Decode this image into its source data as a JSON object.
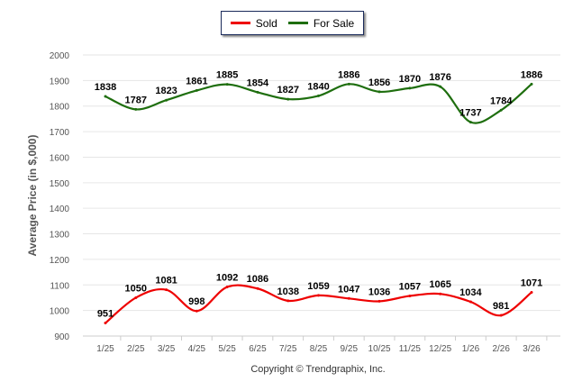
{
  "chart_data": {
    "type": "line",
    "title": "",
    "xlabel": "",
    "ylabel": "Average Price (in $,000)",
    "ylim": [
      900,
      2000
    ],
    "yticks": [
      900,
      1000,
      1100,
      1200,
      1300,
      1400,
      1500,
      1600,
      1700,
      1800,
      1900,
      2000
    ],
    "grid": true,
    "legend_position": "top-center",
    "categories": [
      "1/25",
      "2/25",
      "3/25",
      "4/25",
      "5/25",
      "6/25",
      "7/25",
      "8/25",
      "9/25",
      "10/25",
      "11/25",
      "12/25",
      "1/26",
      "2/26",
      "3/26"
    ],
    "series": [
      {
        "name": "Sold",
        "color": "#ee0000",
        "values": [
          951,
          1050,
          1081,
          998,
          1092,
          1086,
          1038,
          1059,
          1047,
          1036,
          1057,
          1065,
          1034,
          981,
          1071
        ]
      },
      {
        "name": "For Sale",
        "color": "#1e6e0e",
        "values": [
          1838,
          1787,
          1823,
          1861,
          1885,
          1854,
          1827,
          1840,
          1886,
          1856,
          1870,
          1876,
          1737,
          1784,
          1886
        ]
      }
    ],
    "footer": "Copyright © Trendgraphix, Inc."
  }
}
